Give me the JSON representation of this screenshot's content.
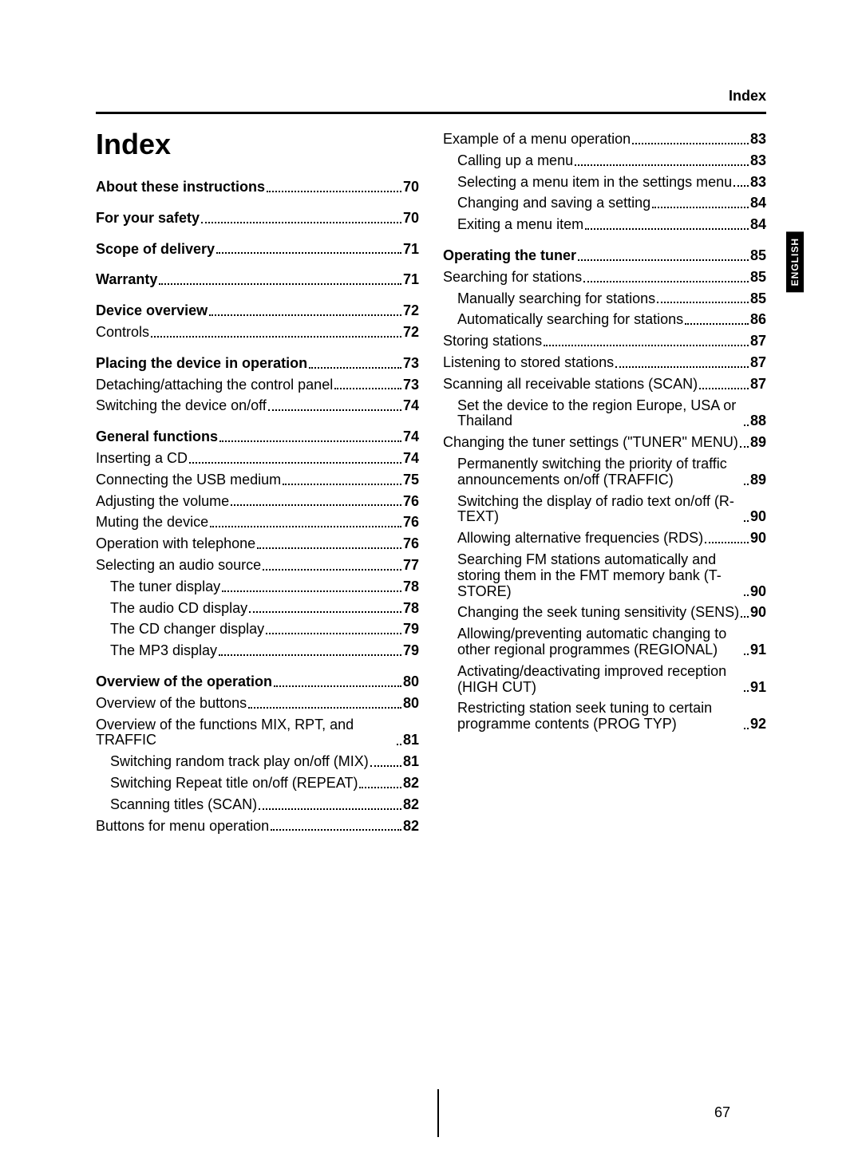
{
  "header": {
    "label": "Index",
    "language_tab": "ENGLISH"
  },
  "title": "Index",
  "page_number": "67",
  "left_column": [
    {
      "type": "entry",
      "level": 0,
      "bold": true,
      "text": "About these instructions",
      "page": "70"
    },
    {
      "type": "gap"
    },
    {
      "type": "entry",
      "level": 0,
      "bold": true,
      "text": "For your safety",
      "page": "70"
    },
    {
      "type": "gap"
    },
    {
      "type": "entry",
      "level": 0,
      "bold": true,
      "text": "Scope of delivery",
      "page": "71"
    },
    {
      "type": "gap"
    },
    {
      "type": "entry",
      "level": 0,
      "bold": true,
      "text": "Warranty",
      "page": "71"
    },
    {
      "type": "gap"
    },
    {
      "type": "entry",
      "level": 0,
      "bold": true,
      "text": "Device overview",
      "page": "72"
    },
    {
      "type": "entry",
      "level": 0,
      "bold": false,
      "text": "Controls",
      "page": "72"
    },
    {
      "type": "gap"
    },
    {
      "type": "entry",
      "level": 0,
      "bold": true,
      "text": "Placing the device in operation",
      "page": "73"
    },
    {
      "type": "entry",
      "level": 0,
      "bold": false,
      "text": "Detaching/attaching the control panel",
      "page": "73"
    },
    {
      "type": "entry",
      "level": 0,
      "bold": false,
      "text": "Switching the device on/off",
      "page": "74"
    },
    {
      "type": "gap"
    },
    {
      "type": "entry",
      "level": 0,
      "bold": true,
      "text": "General functions",
      "page": "74"
    },
    {
      "type": "entry",
      "level": 0,
      "bold": false,
      "text": "Inserting a CD",
      "page": "74"
    },
    {
      "type": "entry",
      "level": 0,
      "bold": false,
      "text": "Connecting the USB medium",
      "page": "75"
    },
    {
      "type": "entry",
      "level": 0,
      "bold": false,
      "text": "Adjusting the volume",
      "page": "76"
    },
    {
      "type": "entry",
      "level": 0,
      "bold": false,
      "text": "Muting the device",
      "page": "76"
    },
    {
      "type": "entry",
      "level": 0,
      "bold": false,
      "text": "Operation with telephone",
      "page": "76"
    },
    {
      "type": "entry",
      "level": 0,
      "bold": false,
      "text": "Selecting an audio source",
      "page": "77"
    },
    {
      "type": "entry",
      "level": 1,
      "bold": false,
      "text": "The tuner display",
      "page": "78"
    },
    {
      "type": "entry",
      "level": 1,
      "bold": false,
      "text": "The audio CD display",
      "page": "78"
    },
    {
      "type": "entry",
      "level": 1,
      "bold": false,
      "text": "The CD changer display",
      "page": "79"
    },
    {
      "type": "entry",
      "level": 1,
      "bold": false,
      "text": "The MP3 display",
      "page": "79"
    },
    {
      "type": "gap"
    },
    {
      "type": "entry",
      "level": 0,
      "bold": true,
      "text": "Overview of the operation",
      "page": "80"
    },
    {
      "type": "entry",
      "level": 0,
      "bold": false,
      "text": "Overview of the buttons",
      "page": "80"
    },
    {
      "type": "entry",
      "level": 0,
      "bold": false,
      "text": "Overview of the functions MIX, RPT, and TRAFFIC",
      "page": "81"
    },
    {
      "type": "entry",
      "level": 1,
      "bold": false,
      "text": "Switching random track play on/off (MIX)",
      "page": "81"
    },
    {
      "type": "entry",
      "level": 1,
      "bold": false,
      "text": "Switching Repeat title on/off (REPEAT)",
      "page": "82"
    },
    {
      "type": "entry",
      "level": 1,
      "bold": false,
      "text": "Scanning titles (SCAN)",
      "page": "82"
    },
    {
      "type": "entry",
      "level": 0,
      "bold": false,
      "text": "Buttons for menu operation",
      "page": "82"
    }
  ],
  "right_column": [
    {
      "type": "entry",
      "level": 0,
      "bold": false,
      "text": "Example of a menu operation",
      "page": "83"
    },
    {
      "type": "entry",
      "level": 1,
      "bold": false,
      "text": "Calling up a menu",
      "page": "83"
    },
    {
      "type": "entry",
      "level": 1,
      "bold": false,
      "text": "Selecting a menu item in the settings menu",
      "page": "83"
    },
    {
      "type": "entry",
      "level": 1,
      "bold": false,
      "text": "Changing and saving a setting",
      "page": "84"
    },
    {
      "type": "entry",
      "level": 1,
      "bold": false,
      "text": "Exiting a menu item",
      "page": "84"
    },
    {
      "type": "gap"
    },
    {
      "type": "entry",
      "level": 0,
      "bold": true,
      "text": "Operating the tuner",
      "page": "85"
    },
    {
      "type": "entry",
      "level": 0,
      "bold": false,
      "text": "Searching for stations",
      "page": "85"
    },
    {
      "type": "entry",
      "level": 1,
      "bold": false,
      "text": "Manually searching for stations",
      "page": "85"
    },
    {
      "type": "entry",
      "level": 1,
      "bold": false,
      "text": "Automatically searching for stations",
      "page": "86"
    },
    {
      "type": "entry",
      "level": 0,
      "bold": false,
      "text": "Storing stations",
      "page": "87"
    },
    {
      "type": "entry",
      "level": 0,
      "bold": false,
      "text": "Listening to stored stations",
      "page": "87"
    },
    {
      "type": "entry",
      "level": 0,
      "bold": false,
      "text": "Scanning all receivable stations (SCAN)",
      "page": "87"
    },
    {
      "type": "entry",
      "level": 1,
      "bold": false,
      "text": "Set the device to the region Europe, USA or Thailand",
      "page": "88"
    },
    {
      "type": "entry",
      "level": 0,
      "bold": false,
      "text": "Changing the tuner settings (\"TUNER\" MENU)",
      "page": "89"
    },
    {
      "type": "entry",
      "level": 1,
      "bold": false,
      "text": "Permanently switching the priority of traffic announcements on/off (TRAFFIC)",
      "page": "89"
    },
    {
      "type": "entry",
      "level": 1,
      "bold": false,
      "text": "Switching the display of radio text on/off (R-TEXT)",
      "page": "90"
    },
    {
      "type": "entry",
      "level": 1,
      "bold": false,
      "text": "Allowing alternative frequencies (RDS)",
      "page": "90"
    },
    {
      "type": "entry",
      "level": 1,
      "bold": false,
      "text": "Searching FM stations automatically and storing them in the FMT memory bank (T-STORE)",
      "page": "90"
    },
    {
      "type": "entry",
      "level": 1,
      "bold": false,
      "text": "Changing the seek tuning sensitivity (SENS)",
      "page": "90"
    },
    {
      "type": "entry",
      "level": 1,
      "bold": false,
      "text": "Allowing/preventing automatic changing to other regional programmes (REGIONAL)",
      "page": "91"
    },
    {
      "type": "entry",
      "level": 1,
      "bold": false,
      "text": "Activating/deactivating improved reception (HIGH CUT)",
      "page": "91"
    },
    {
      "type": "entry",
      "level": 1,
      "bold": false,
      "text": "Restricting station seek tuning to certain programme contents (PROG TYP)",
      "page": "92"
    }
  ]
}
